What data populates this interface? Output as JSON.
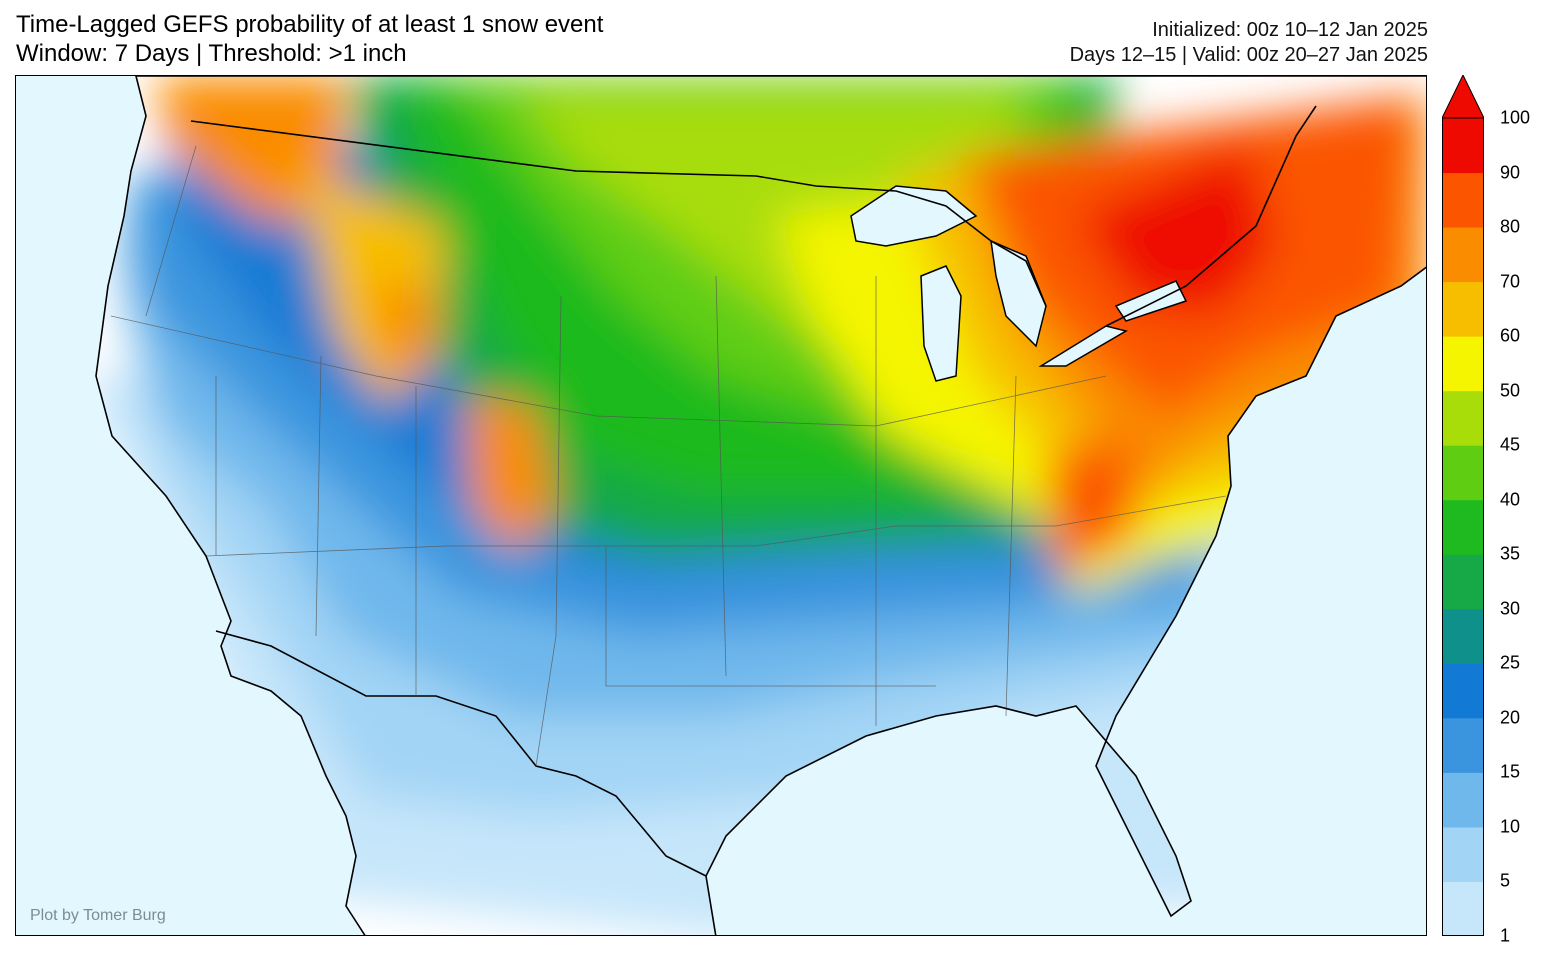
{
  "header": {
    "title_line1": "Time-Lagged GEFS probability of at least 1 snow event",
    "title_line2": "Window: 7 Days | Threshold: >1 inch",
    "init_line": "Initialized: 00z 10–12 Jan 2025",
    "valid_line": "Days 12–15 | Valid: 00z 20–27 Jan 2025"
  },
  "map": {
    "region": "Contiguous United States",
    "credit": "Plot by Tomer Burg"
  },
  "colorbar": {
    "ticks": [
      "1",
      "5",
      "10",
      "15",
      "20",
      "25",
      "30",
      "35",
      "40",
      "45",
      "50",
      "60",
      "70",
      "80",
      "90",
      "100"
    ],
    "colors": [
      "#c6e6fa",
      "#a2d4f5",
      "#6fb8ec",
      "#3b95de",
      "#127ad4",
      "#10908a",
      "#17a848",
      "#1fba1f",
      "#5fcd12",
      "#a8dd0a",
      "#f5f500",
      "#f7be00",
      "#fa8c00",
      "#fb5500",
      "#ee0a00"
    ],
    "extend": "max"
  },
  "colors": {
    "ocean": "#e3f8fe",
    "land_below_threshold": "#ffffff"
  }
}
